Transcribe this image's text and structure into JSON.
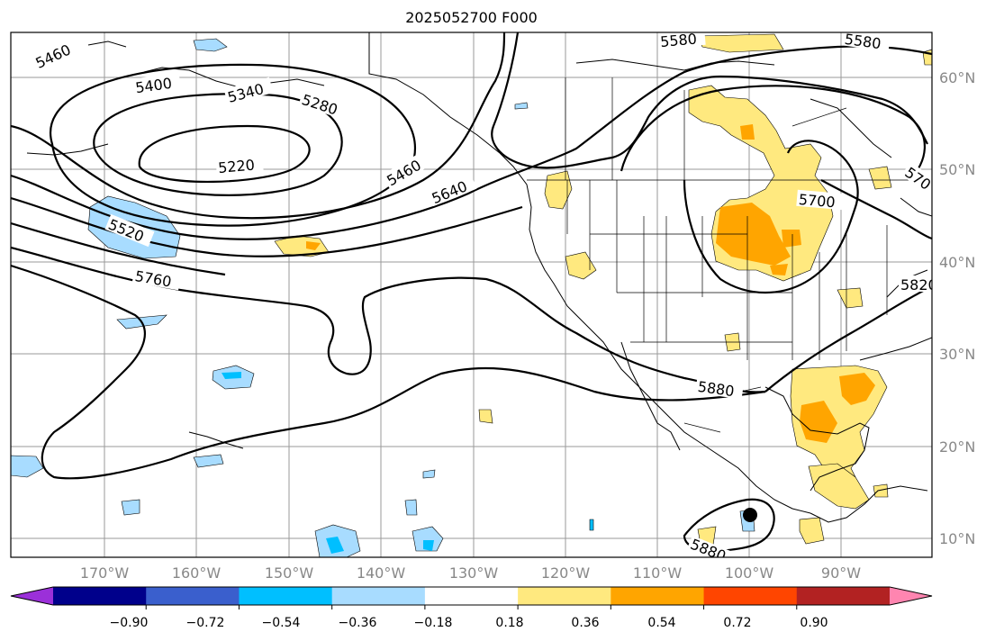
{
  "title": "2025052700 F000",
  "map": {
    "lon_labels": [
      "170°W",
      "160°W",
      "150°W",
      "140°W",
      "130°W",
      "120°W",
      "110°W",
      "100°W",
      "90°W"
    ],
    "lat_labels": [
      "60°N",
      "50°N",
      "40°N",
      "30°N",
      "20°N",
      "10°N"
    ],
    "contour_labels": [
      "5460",
      "5400",
      "5340",
      "5280",
      "5220",
      "5460",
      "5640",
      "5520",
      "5760",
      "5580",
      "5580",
      "5700",
      "5820",
      "5880",
      "5880",
      "570"
    ],
    "label_color": "#888888"
  },
  "colorbar": {
    "ticks": [
      "−0.90",
      "−0.72",
      "−0.54",
      "−0.36",
      "−0.18",
      "0.18",
      "0.36",
      "0.54",
      "0.72",
      "0.90"
    ],
    "colors": [
      "#9b30d9",
      "#00008b",
      "#3a5fcd",
      "#00bfff",
      "#a8dcff",
      "#ffffff",
      "#ffe97f",
      "#ffa500",
      "#ff4500",
      "#b22222",
      "#ff85b0"
    ]
  }
}
